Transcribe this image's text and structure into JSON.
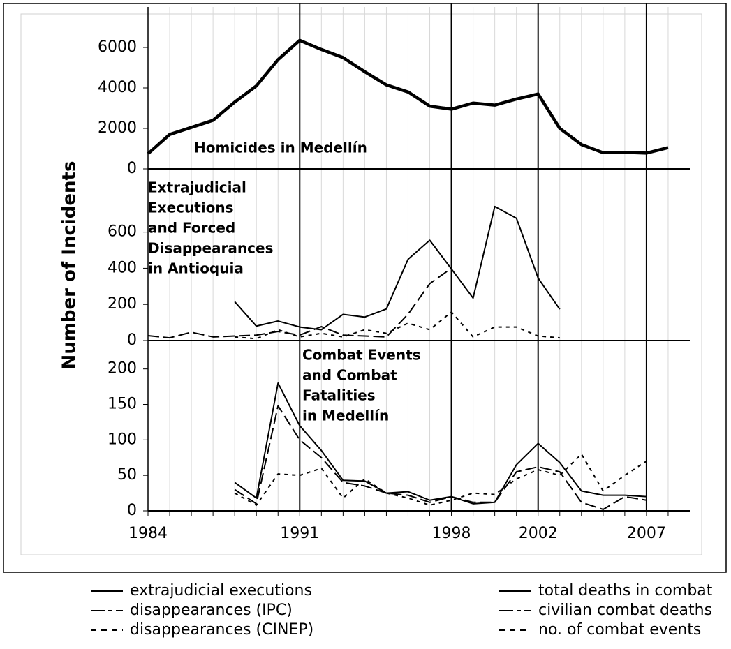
{
  "chart_data": [
    {
      "type": "line",
      "annotation": [
        "Homicides in Medellín"
      ],
      "x": [
        1984,
        1985,
        1986,
        1987,
        1988,
        1989,
        1990,
        1991,
        1992,
        1993,
        1994,
        1995,
        1996,
        1997,
        1998,
        1999,
        2000,
        2001,
        2002,
        2003,
        2004,
        2005,
        2006,
        2007,
        2008
      ],
      "values": [
        750,
        1700,
        2050,
        2400,
        3300,
        4100,
        5400,
        6350,
        5900,
        5500,
        4800,
        4150,
        3800,
        3100,
        2950,
        3250,
        3150,
        3450,
        3700,
        2000,
        1200,
        800,
        820,
        780,
        1050
      ],
      "color": "#000000",
      "ylim": [
        0,
        8000
      ],
      "yticks": [
        0,
        2000,
        4000,
        6000
      ]
    },
    {
      "type": "line",
      "annotation": [
        "Extrajudicial",
        "Executions",
        "and Forced",
        "Disappearances",
        "in Antioquia"
      ],
      "x": [
        1984,
        1985,
        1986,
        1987,
        1988,
        1989,
        1990,
        1991,
        1992,
        1993,
        1994,
        1995,
        1996,
        1997,
        1998,
        1999,
        2000,
        2001,
        2002,
        2003
      ],
      "series": [
        {
          "name": "extrajudicial executions",
          "color": "#000000",
          "dash": "solid",
          "values": [
            null,
            null,
            null,
            null,
            215,
            80,
            108,
            75,
            60,
            145,
            130,
            175,
            450,
            555,
            396,
            235,
            742,
            677,
            346,
            173
          ]
        },
        {
          "name": "disappearances (IPC)",
          "color": "#000000",
          "dash": "long",
          "values": [
            27,
            15,
            46,
            20,
            25,
            30,
            50,
            30,
            77,
            30,
            25,
            20,
            146,
            315,
            400,
            null,
            null,
            null,
            null,
            null
          ]
        },
        {
          "name": "disappearances (CINEP)",
          "color": "#000000",
          "dash": "short",
          "values": [
            null,
            null,
            null,
            null,
            20,
            10,
            60,
            20,
            40,
            20,
            60,
            40,
            96,
            60,
            158,
            20,
            75,
            75,
            25,
            15
          ]
        }
      ],
      "ylim": [
        0,
        950
      ],
      "yticks": [
        0,
        200,
        400,
        600
      ]
    },
    {
      "type": "line",
      "annotation": [
        "Combat Events",
        "and Combat",
        "Fatalities",
        "in Medellín"
      ],
      "x": [
        1988,
        1989,
        1990,
        1991,
        1992,
        1993,
        1994,
        1995,
        1996,
        1997,
        1998,
        1999,
        2000,
        2001,
        2002,
        2003,
        2004,
        2005,
        2006,
        2007
      ],
      "series": [
        {
          "name": "total deaths in combat",
          "color": "#000000",
          "dash": "solid",
          "values": [
            40,
            18,
            180,
            120,
            85,
            43,
            42,
            25,
            27,
            15,
            20,
            10,
            12,
            65,
            95,
            68,
            28,
            22,
            22,
            20
          ]
        },
        {
          "name": "civilian combat deaths",
          "color": "#000000",
          "dash": "long",
          "values": [
            30,
            10,
            148,
            100,
            75,
            40,
            35,
            25,
            22,
            12,
            20,
            12,
            12,
            55,
            62,
            55,
            12,
            2,
            20,
            15
          ]
        },
        {
          "name": "no. of combat events",
          "color": "#000000",
          "dash": "short",
          "values": [
            25,
            8,
            52,
            50,
            60,
            18,
            45,
            25,
            18,
            8,
            15,
            25,
            23,
            45,
            58,
            50,
            80,
            28,
            50,
            70
          ]
        }
      ],
      "ylim": [
        0,
        240
      ],
      "yticks": [
        0,
        50,
        100,
        150,
        200
      ],
      "xlim": [
        1984,
        2009
      ],
      "xticks": [
        1984,
        1991,
        1998,
        2002,
        2007
      ],
      "xminorticks": [
        1985,
        1986,
        1987,
        1988,
        1989,
        1990,
        1992,
        1993,
        1994,
        1995,
        1996,
        1997,
        1999,
        2000,
        2001,
        2003,
        2004,
        2005,
        2006,
        2008
      ]
    }
  ],
  "y_label": "Number of Incidents"
}
